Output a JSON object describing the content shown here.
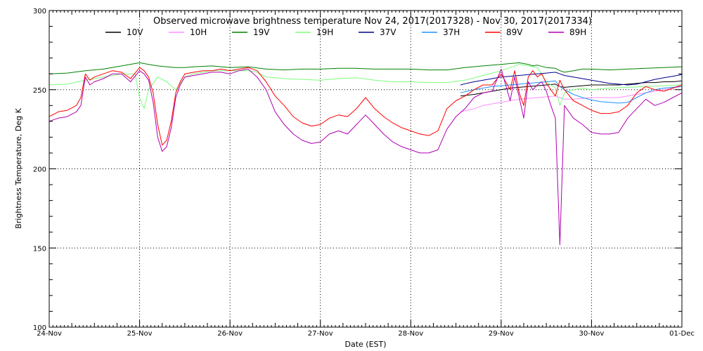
{
  "chart_data": {
    "type": "line",
    "title": "Observed microwave brightness temperature Nov 24, 2017(2017328) - Nov 30, 2017(2017334)",
    "xlabel": "Date (EST)",
    "ylabel": "Brightness Temperature, Deg K",
    "ylim": [
      100,
      300
    ],
    "xlim": [
      0,
      7
    ],
    "x_ticks": [
      0,
      1,
      2,
      3,
      4,
      5,
      6,
      7
    ],
    "x_tick_labels": [
      "24-Nov",
      "25-Nov",
      "26-Nov",
      "27-Nov",
      "28-Nov",
      "29-Nov",
      "30-Nov",
      "01-Dec"
    ],
    "y_ticks": [
      100,
      150,
      200,
      250,
      300
    ],
    "grid": true,
    "legend_position": "top",
    "series": [
      {
        "name": "10V",
        "color": "#000000",
        "x": [
          4.55,
          4.62,
          4.7,
          4.8,
          4.9,
          5.0,
          5.1,
          5.2,
          5.3,
          5.4,
          5.5,
          5.6,
          5.65,
          5.7,
          5.8,
          5.9,
          6.0,
          6.1,
          6.2,
          6.3,
          6.4,
          6.5,
          6.6,
          6.7,
          6.8,
          6.9,
          7.0
        ],
        "y": [
          246,
          246.5,
          247,
          248,
          249,
          250,
          251,
          251.5,
          252,
          252.5,
          253,
          253.5,
          252,
          251.5,
          252,
          252.5,
          253,
          253,
          253,
          253,
          253.5,
          254,
          254.5,
          254.5,
          255,
          255,
          255.5
        ]
      },
      {
        "name": "10H",
        "color": "#ff8cff",
        "x": [
          4.55,
          4.62,
          4.7,
          4.8,
          4.9,
          5.0,
          5.1,
          5.2,
          5.3,
          5.4,
          5.5,
          5.6,
          5.65,
          5.7,
          5.8,
          5.9,
          6.0,
          6.1,
          6.2,
          6.3,
          6.4,
          6.5,
          6.6,
          6.7,
          6.8,
          6.9,
          7.0
        ],
        "y": [
          236,
          237,
          238,
          240,
          241,
          242,
          243,
          244,
          244.5,
          245,
          245.5,
          246,
          245,
          244,
          244,
          244.5,
          245,
          245,
          245,
          245,
          246,
          247,
          248,
          249,
          250,
          251,
          252
        ]
      },
      {
        "name": "19V",
        "color": "#008000",
        "x": [
          0,
          0.2,
          0.4,
          0.6,
          0.8,
          1.0,
          1.1,
          1.2,
          1.3,
          1.4,
          1.5,
          1.6,
          1.8,
          2.0,
          2.2,
          2.4,
          2.6,
          2.8,
          3.0,
          3.2,
          3.4,
          3.6,
          3.8,
          4.0,
          4.2,
          4.4,
          4.6,
          4.8,
          5.0,
          5.1,
          5.2,
          5.3,
          5.35,
          5.4,
          5.5,
          5.6,
          5.65,
          5.7,
          5.8,
          5.9,
          6.0,
          6.2,
          6.4,
          6.6,
          6.8,
          7.0
        ],
        "y": [
          260,
          260.5,
          262,
          263,
          265,
          267,
          266,
          265,
          264.5,
          264,
          264,
          264.5,
          265,
          264,
          264.5,
          263,
          262.5,
          263,
          263,
          263.5,
          263.5,
          263,
          263,
          263,
          262.5,
          262.5,
          264,
          265,
          266,
          266.5,
          267,
          266,
          265,
          265.5,
          264,
          263.5,
          262,
          261,
          262,
          263,
          263,
          262.5,
          263,
          263.5,
          264,
          264.5
        ]
      },
      {
        "name": "19H",
        "color": "#7cfc7c",
        "x": [
          0,
          0.2,
          0.4,
          0.6,
          0.8,
          0.95,
          1.0,
          1.05,
          1.1,
          1.2,
          1.3,
          1.4,
          1.5,
          1.6,
          1.8,
          2.0,
          2.2,
          2.3,
          2.4,
          2.6,
          2.8,
          3.0,
          3.2,
          3.4,
          3.6,
          3.8,
          4.0,
          4.2,
          4.4,
          4.6,
          4.8,
          5.0,
          5.1,
          5.2,
          5.3,
          5.4,
          5.5,
          5.6,
          5.65,
          5.7,
          5.8,
          5.9,
          6.0,
          6.2,
          6.4,
          6.6,
          6.8,
          7.0
        ],
        "y": [
          253,
          253.5,
          256,
          258,
          260,
          260,
          245,
          238,
          250,
          258,
          255,
          250,
          258,
          260,
          262,
          262,
          262,
          261,
          258,
          257,
          256.5,
          256,
          257,
          257.5,
          256,
          255,
          255,
          254.5,
          254.5,
          256,
          259,
          262,
          264,
          266,
          265,
          264,
          255,
          251,
          240,
          248,
          250,
          251,
          250,
          251,
          251.5,
          252,
          252.5,
          253
        ]
      },
      {
        "name": "37V",
        "color": "#00008b",
        "x": [
          4.55,
          4.62,
          4.7,
          4.8,
          4.9,
          5.0,
          5.1,
          5.2,
          5.3,
          5.4,
          5.5,
          5.6,
          5.65,
          5.7,
          5.8,
          5.9,
          6.0,
          6.1,
          6.2,
          6.3,
          6.4,
          6.5,
          6.6,
          6.7,
          6.8,
          6.9,
          7.0
        ],
        "y": [
          253,
          254,
          255,
          256,
          257,
          258,
          258.5,
          259,
          259.5,
          260,
          260.5,
          261,
          260,
          259,
          258,
          257,
          256,
          255,
          254,
          253.5,
          253,
          253.5,
          255,
          256.5,
          257.5,
          258.5,
          259.5
        ]
      },
      {
        "name": "37H",
        "color": "#1e90ff",
        "x": [
          4.55,
          4.62,
          4.7,
          4.8,
          4.9,
          5.0,
          5.1,
          5.2,
          5.3,
          5.4,
          5.5,
          5.6,
          5.65,
          5.7,
          5.8,
          5.9,
          6.0,
          6.1,
          6.2,
          6.3,
          6.4,
          6.5,
          6.6,
          6.7,
          6.8,
          6.9,
          7.0
        ],
        "y": [
          248,
          249,
          250,
          251,
          252,
          252.5,
          253,
          253.5,
          254,
          254.5,
          255,
          255.5,
          252,
          250,
          247,
          245,
          243.5,
          242.5,
          242,
          241.5,
          242,
          245,
          248,
          250,
          251,
          251.5,
          252
        ]
      },
      {
        "name": "89V",
        "color": "#ff0000",
        "x": [
          0,
          0.1,
          0.2,
          0.3,
          0.35,
          0.4,
          0.45,
          0.5,
          0.6,
          0.7,
          0.8,
          0.9,
          1.0,
          1.05,
          1.1,
          1.15,
          1.2,
          1.25,
          1.3,
          1.35,
          1.4,
          1.45,
          1.5,
          1.6,
          1.7,
          1.8,
          1.9,
          2.0,
          2.1,
          2.2,
          2.3,
          2.4,
          2.5,
          2.6,
          2.7,
          2.8,
          2.9,
          3.0,
          3.1,
          3.2,
          3.3,
          3.4,
          3.5,
          3.6,
          3.7,
          3.8,
          3.9,
          4.0,
          4.1,
          4.2,
          4.3,
          4.4,
          4.5,
          4.6,
          4.7,
          4.8,
          4.9,
          5.0,
          5.1,
          5.15,
          5.2,
          5.25,
          5.3,
          5.35,
          5.4,
          5.45,
          5.5,
          5.55,
          5.6,
          5.65,
          5.7,
          5.8,
          5.9,
          6.0,
          6.1,
          6.2,
          6.3,
          6.4,
          6.5,
          6.6,
          6.7,
          6.8,
          6.9,
          7.0
        ],
        "y": [
          233,
          236,
          237,
          240,
          245,
          260,
          256,
          258,
          260,
          262,
          261,
          257,
          264,
          262,
          258,
          248,
          228,
          215,
          218,
          230,
          248,
          255,
          260,
          261,
          262,
          262,
          263,
          262,
          263,
          264,
          262,
          255,
          246,
          240,
          233,
          229,
          227,
          228,
          232,
          234,
          233,
          238,
          245,
          238,
          233,
          229,
          226,
          224,
          222,
          221,
          224,
          238,
          243,
          246,
          250,
          253,
          253,
          260,
          250,
          262,
          248,
          240,
          258,
          262,
          258,
          260,
          254,
          250,
          246,
          256,
          250,
          243,
          240,
          237,
          235,
          235,
          236,
          240,
          248,
          252,
          250,
          249,
          251,
          253
        ]
      },
      {
        "name": "89H",
        "color": "#b000b0",
        "x": [
          0,
          0.1,
          0.2,
          0.3,
          0.35,
          0.4,
          0.45,
          0.5,
          0.6,
          0.7,
          0.8,
          0.9,
          1.0,
          1.05,
          1.1,
          1.15,
          1.2,
          1.25,
          1.3,
          1.35,
          1.4,
          1.45,
          1.5,
          1.6,
          1.7,
          1.8,
          1.9,
          2.0,
          2.1,
          2.2,
          2.3,
          2.4,
          2.5,
          2.6,
          2.7,
          2.8,
          2.9,
          3.0,
          3.1,
          3.2,
          3.3,
          3.4,
          3.5,
          3.6,
          3.7,
          3.8,
          3.9,
          4.0,
          4.1,
          4.2,
          4.3,
          4.4,
          4.5,
          4.6,
          4.7,
          4.8,
          4.9,
          5.0,
          5.1,
          5.15,
          5.2,
          5.25,
          5.3,
          5.35,
          5.4,
          5.45,
          5.5,
          5.55,
          5.6,
          5.65,
          5.7,
          5.8,
          5.9,
          6.0,
          6.1,
          6.2,
          6.3,
          6.4,
          6.5,
          6.6,
          6.7,
          6.8,
          6.9,
          7.0
        ],
        "y": [
          230,
          232,
          233,
          236,
          240,
          258,
          253,
          255,
          257,
          260,
          260,
          255,
          262,
          260,
          256,
          242,
          220,
          211,
          214,
          226,
          245,
          253,
          258,
          259,
          260,
          261,
          261,
          260,
          262,
          263,
          258,
          250,
          236,
          228,
          222,
          218,
          216,
          217,
          222,
          224,
          222,
          228,
          234,
          228,
          222,
          217,
          214,
          212,
          210,
          210,
          212,
          225,
          233,
          238,
          245,
          248,
          249,
          263,
          243,
          258,
          245,
          232,
          255,
          250,
          253,
          255,
          249,
          240,
          232,
          152,
          240,
          232,
          228,
          223,
          222,
          222,
          223,
          232,
          238,
          244,
          240,
          242,
          245,
          248
        ]
      }
    ]
  }
}
